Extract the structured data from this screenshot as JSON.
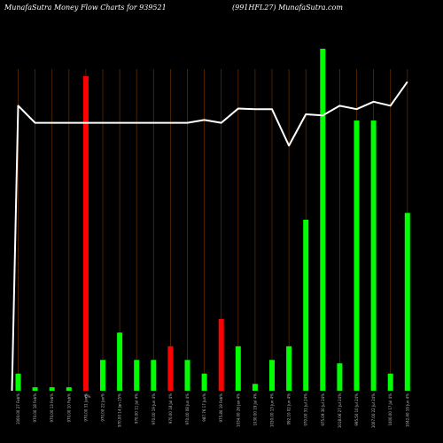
{
  "header": {
    "title": "MunafaSutra  Money Flow  Charts for 939521",
    "right_title": "(991HFL27) MunafaSutra.com"
  },
  "colors": {
    "background": "#000000",
    "up_bar": "#00ff00",
    "down_bar": "#ff0000",
    "grid_line": "#5a2a00",
    "flow_line": "#ffffff"
  },
  "chart_data": {
    "type": "bar",
    "title": "MunafaSutra  Money Flow  Charts for 939521",
    "subtitle": "(991HFL27) MunafaSutra.com",
    "categories": [
      "1000.00 27 Feb%",
      "970.00 18 Feb%",
      "970.00 13 Feb%",
      "970.00 10 Feb%",
      "970.00 31 Jan%",
      "970.00 22 Jan%",
      "970.00 14 Jan 25%",
      "970.00 11 Jul 4%",
      "970.00 19 Jun 4%",
      "970.00 18 Jul 4%",
      "970.00 08 Jun 4%",
      "987.76 17 Jun%",
      "975.80 19 Feb%",
      "1034.00 26 Jan 4%",
      "1030.00 19 Jul 4%",
      "1030.00 13 Jun 4%",
      "992.10 02 Jun 4%",
      "970.00 31 Jul 24%",
      "975.09 30 Jul 24%",
      "1018.06 27 Jul 24%",
      "995.50 10 Jul 24%",
      "1007.00 22 Jul 24%",
      "1000.00 17 Jul 4%",
      "1042.40 19 Jun 4%"
    ],
    "values": [
      5,
      1,
      1,
      1,
      92,
      9,
      17,
      9,
      9,
      13,
      9,
      5,
      21,
      13,
      2,
      9,
      13,
      50,
      100,
      8,
      79,
      79,
      5,
      52
    ],
    "directions": [
      "up",
      "up",
      "up",
      "up",
      "down",
      "up",
      "up",
      "up",
      "up",
      "down",
      "up",
      "up",
      "down",
      "up",
      "up",
      "up",
      "up",
      "up",
      "up",
      "up",
      "up",
      "up",
      "up",
      "up"
    ],
    "flow_line": [
      1000,
      970,
      970,
      970,
      970,
      970,
      970,
      970,
      970,
      970,
      970,
      975,
      970,
      995,
      994,
      994,
      930,
      985,
      983,
      1000,
      994,
      1007,
      1000,
      1042
    ],
    "ylim": [
      0,
      100
    ],
    "flow_ylim": [
      500,
      1100
    ],
    "grid": true,
    "zero_label": "0%"
  }
}
